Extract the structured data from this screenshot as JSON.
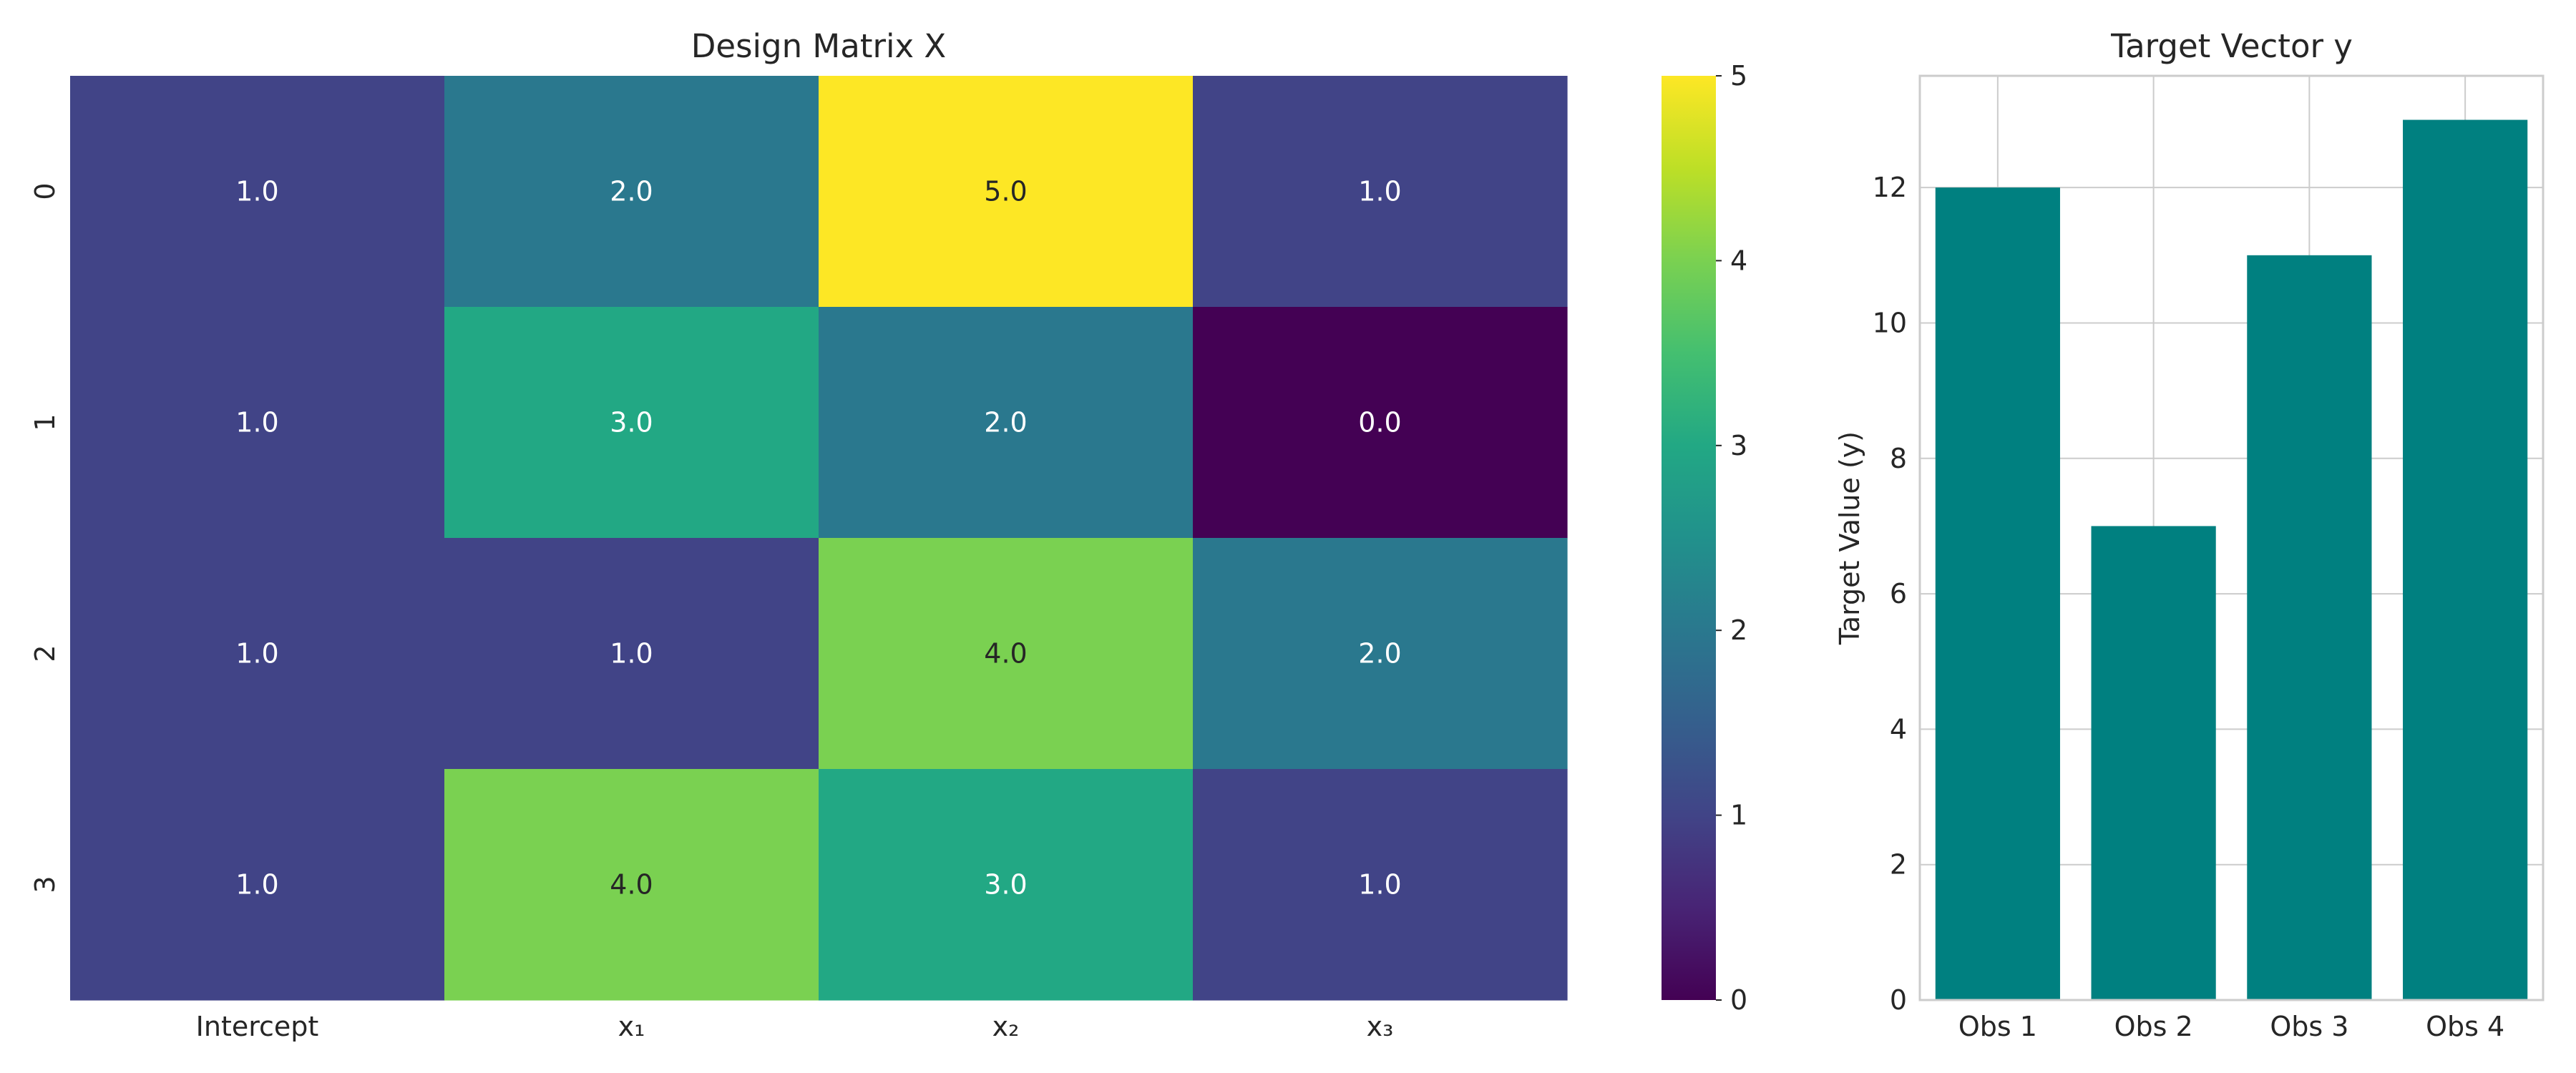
{
  "chart_data": [
    {
      "type": "heatmap",
      "title": "Design Matrix X",
      "xlabel": "",
      "ylabel": "",
      "x_tick_labels": [
        "Intercept",
        "x₁",
        "x₂",
        "x₃"
      ],
      "y_tick_labels": [
        "0",
        "1",
        "2",
        "3"
      ],
      "values": [
        [
          1.0,
          2.0,
          5.0,
          1.0
        ],
        [
          1.0,
          3.0,
          2.0,
          0.0
        ],
        [
          1.0,
          1.0,
          4.0,
          2.0
        ],
        [
          1.0,
          4.0,
          3.0,
          1.0
        ]
      ],
      "annotation_format": "1 decimal",
      "colormap": "viridis",
      "colorbar": {
        "range": [
          0,
          5
        ],
        "ticks": [
          0,
          1,
          2,
          3,
          4,
          5
        ],
        "tick_labels": [
          "0",
          "1",
          "2",
          "3",
          "4",
          "5"
        ]
      }
    },
    {
      "type": "bar",
      "title": "Target Vector y",
      "categories": [
        "Obs 1",
        "Obs 2",
        "Obs 3",
        "Obs 4"
      ],
      "values": [
        12,
        7,
        11,
        13
      ],
      "xlabel": "",
      "ylabel": "Target Value (y)",
      "ylim": [
        0,
        13.65
      ],
      "yticks": [
        0,
        2,
        4,
        6,
        8,
        10,
        12
      ],
      "ytick_labels": [
        "0",
        "2",
        "4",
        "6",
        "8",
        "10",
        "12"
      ],
      "color": "#008080",
      "grid": true
    }
  ]
}
